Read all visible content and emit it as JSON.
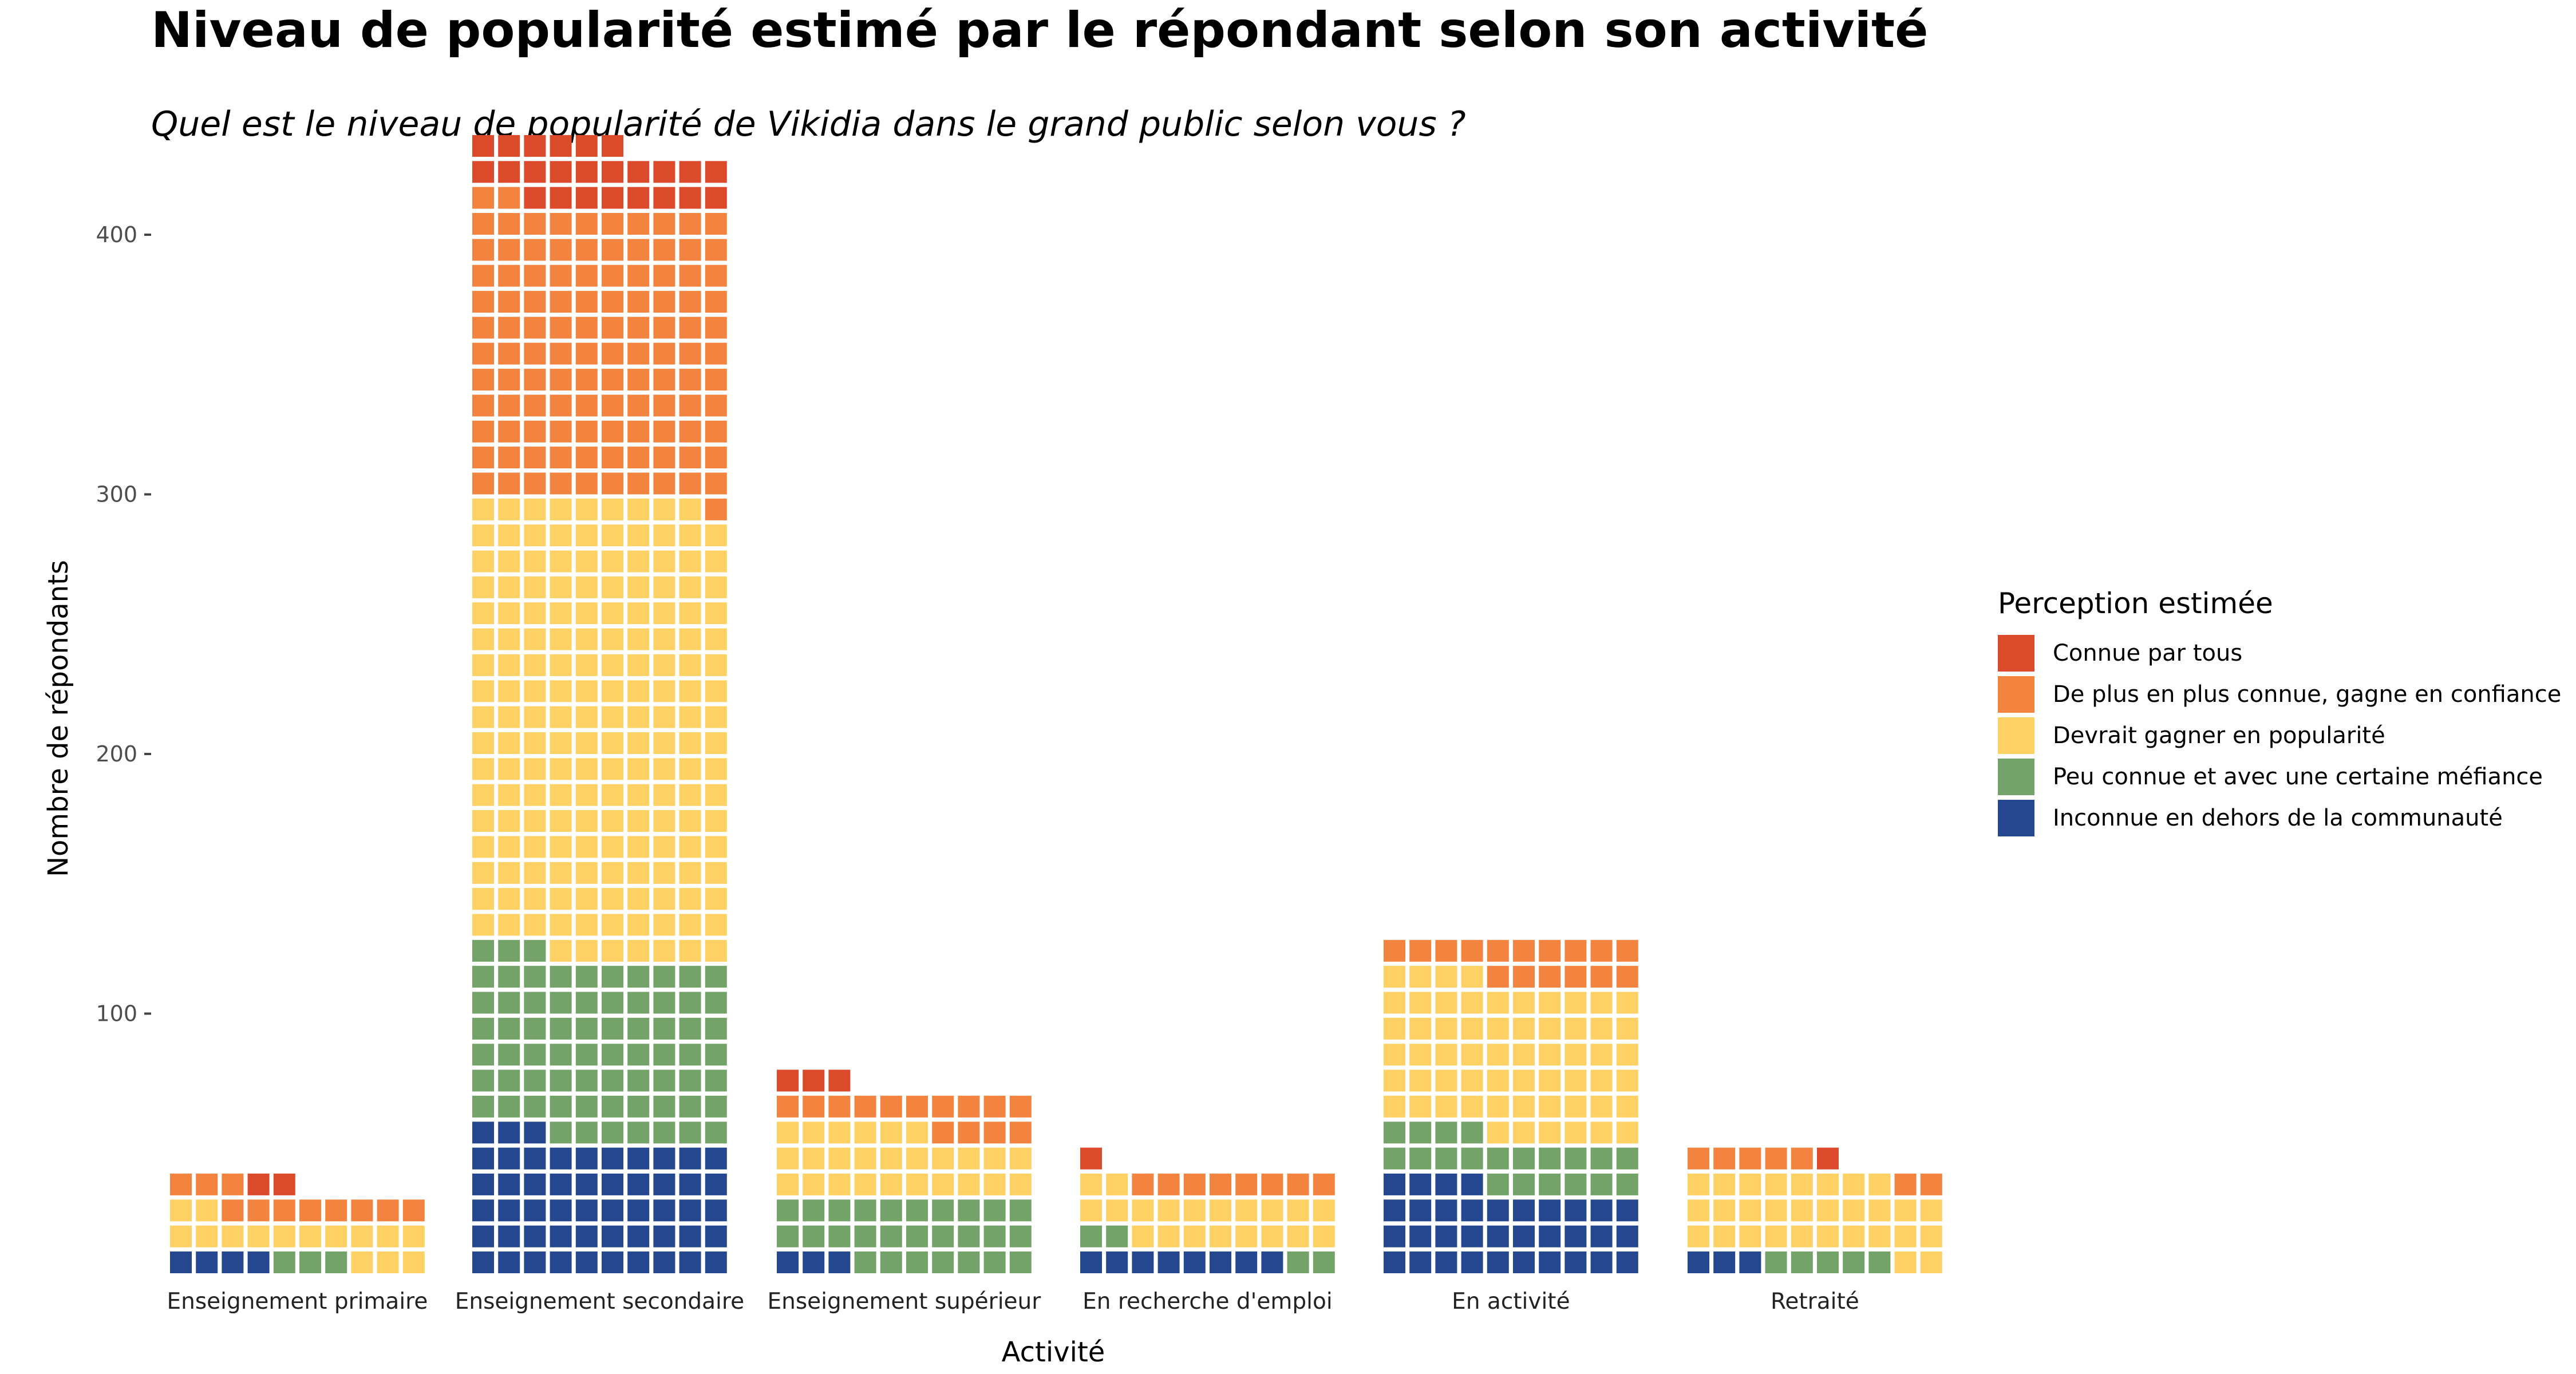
{
  "chart_data": {
    "type": "waffle",
    "title": "Niveau de popularité estimé par le répondant selon son activité",
    "subtitle": "Quel est le niveau de popularité de Vikidia dans le grand public selon vous ?",
    "xlabel": "Activité",
    "ylabel": "Nombre de répondants",
    "ylim": [
      0,
      440
    ],
    "yticks": [
      100,
      200,
      300,
      400
    ],
    "units_per_row": 10,
    "legend": {
      "title": "Perception estimée",
      "position": "right"
    },
    "series": [
      {
        "name": "Inconnue en dehors de la communauté",
        "color": "#24478f"
      },
      {
        "name": "Peu connue et avec une certaine méfiance",
        "color": "#73a368"
      },
      {
        "name": "Devrait gagner en popularité",
        "color": "#fdd163"
      },
      {
        "name": "De plus en plus connue, gagne en confiance",
        "color": "#f2843f"
      },
      {
        "name": "Connue par tous",
        "color": "#dc4a2c"
      }
    ],
    "categories": [
      {
        "label": "Enseignement primaire",
        "values": [
          4,
          3,
          15,
          11,
          2
        ]
      },
      {
        "label": "Enseignement secondaire",
        "values": [
          53,
          70,
          176,
          113,
          24
        ]
      },
      {
        "label": "Enseignement supérieur",
        "values": [
          3,
          27,
          26,
          14,
          3
        ]
      },
      {
        "label": "En recherche d'emploi",
        "values": [
          8,
          4,
          20,
          8,
          1
        ]
      },
      {
        "label": "En activité",
        "values": [
          34,
          20,
          60,
          16,
          0
        ]
      },
      {
        "label": "Retraité",
        "values": [
          3,
          5,
          30,
          7,
          1
        ]
      }
    ]
  }
}
